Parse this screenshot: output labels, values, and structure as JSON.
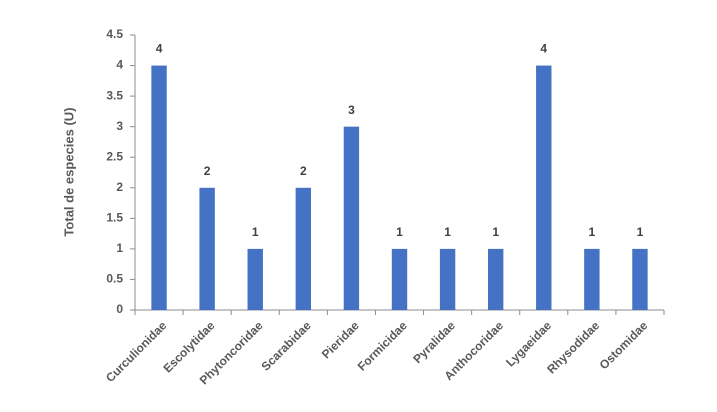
{
  "chart_data": {
    "type": "bar",
    "y_label": "Total de especies (U)",
    "categories": [
      "Curculionidae",
      "Escolytidae",
      "Phytoncoridae",
      "Scarabidae",
      "Pieridae",
      "Formicidae",
      "Pyralidae",
      "Anthocoridae",
      "Lygaeidae",
      "Rhysodidae",
      "Ostomidae"
    ],
    "values": [
      4,
      2,
      1,
      2,
      3,
      1,
      1,
      1,
      4,
      1,
      1
    ],
    "color": "#4472c4",
    "ylim": [
      0,
      4.5
    ],
    "yticks": [
      0,
      0.5,
      1,
      1.5,
      2,
      2.5,
      3,
      3.5,
      4,
      4.5
    ],
    "grid": false
  }
}
